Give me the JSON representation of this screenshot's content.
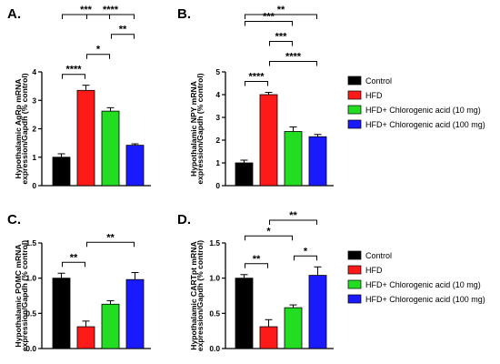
{
  "colors": {
    "Control": "#000000",
    "HFD": "#ff1a1a",
    "HFD+ Chlorogenic acid (10 mg)": "#22dd22",
    "HFD+ Chlorogenic acid (100 mg)": "#1a1aff"
  },
  "legend": [
    "Control",
    "HFD",
    "HFD+ Chlorogenic acid (10 mg)",
    "HFD+ Chlorogenic acid (100 mg)"
  ],
  "chart_data": [
    {
      "type": "bar",
      "panel": "A.",
      "ylabel": [
        "Hypothalamic AgRp mRNA",
        "expression/Gapdh (% control)"
      ],
      "categories": [
        "Control",
        "HFD",
        "HFD+ Chlorogenic acid (10 mg)",
        "HFD+ Chlorogenic acid (100 mg)"
      ],
      "values": [
        1.0,
        3.35,
        2.62,
        1.42
      ],
      "errors": [
        0.12,
        0.18,
        0.12,
        0.05
      ],
      "ylim": [
        0,
        4
      ],
      "yticks": [
        "0",
        "1",
        "2",
        "3",
        "4"
      ],
      "significance": [
        {
          "from": 0,
          "to": 1,
          "label": "****"
        },
        {
          "from": 1,
          "to": 2,
          "label": "*"
        },
        {
          "from": 2,
          "to": 3,
          "label": "**"
        },
        {
          "from": 0,
          "to": 2,
          "label": "***"
        },
        {
          "from": 1,
          "to": 3,
          "label": "****"
        }
      ]
    },
    {
      "type": "bar",
      "panel": "B.",
      "ylabel": [
        "Hypothalamic NPY mRNA",
        "expression/Gapdh (% control)"
      ],
      "categories": [
        "Control",
        "HFD",
        "HFD+ Chlorogenic acid (10 mg)",
        "HFD+ Chlorogenic acid (100 mg)"
      ],
      "values": [
        1.0,
        4.0,
        2.38,
        2.15
      ],
      "errors": [
        0.12,
        0.1,
        0.2,
        0.1
      ],
      "ylim": [
        0,
        5
      ],
      "yticks": [
        "0",
        "1",
        "2",
        "3",
        "4",
        "5"
      ],
      "significance": [
        {
          "from": 0,
          "to": 1,
          "label": "****"
        },
        {
          "from": 1,
          "to": 3,
          "label": "****"
        },
        {
          "from": 1,
          "to": 2,
          "label": "***"
        },
        {
          "from": 0,
          "to": 2,
          "label": "***"
        },
        {
          "from": 0,
          "to": 3,
          "label": "**"
        }
      ]
    },
    {
      "type": "bar",
      "panel": "C.",
      "ylabel": [
        "Hypothalamic POMC mRNA",
        "expression/Gapdh (% control)"
      ],
      "categories": [
        "Control",
        "HFD",
        "HFD+ Chlorogenic acid (10 mg)",
        "HFD+ Chlorogenic acid (100 mg)"
      ],
      "values": [
        1.0,
        0.31,
        0.63,
        0.98
      ],
      "errors": [
        0.07,
        0.08,
        0.05,
        0.1
      ],
      "ylim": [
        0,
        1.5
      ],
      "yticks": [
        "0.0",
        "0.5",
        "1.0",
        "1.5"
      ],
      "significance": [
        {
          "from": 0,
          "to": 1,
          "label": "**"
        },
        {
          "from": 1,
          "to": 3,
          "label": "**"
        }
      ]
    },
    {
      "type": "bar",
      "panel": "D.",
      "ylabel": [
        "Hypothalamic CARTpt mRNA",
        "expression/Gapdh (% control)"
      ],
      "categories": [
        "Control",
        "HFD",
        "HFD+ Chlorogenic acid (10 mg)",
        "HFD+ Chlorogenic acid (100 mg)"
      ],
      "values": [
        1.0,
        0.31,
        0.58,
        1.04
      ],
      "errors": [
        0.05,
        0.1,
        0.04,
        0.12
      ],
      "ylim": [
        0,
        1.5
      ],
      "yticks": [
        "0.0",
        "0.5",
        "1.0",
        "1.5"
      ],
      "significance": [
        {
          "from": 0,
          "to": 1,
          "label": "**"
        },
        {
          "from": 2,
          "to": 3,
          "label": "*"
        },
        {
          "from": 0,
          "to": 2,
          "label": "*"
        },
        {
          "from": 1,
          "to": 3,
          "label": "**"
        }
      ]
    }
  ]
}
